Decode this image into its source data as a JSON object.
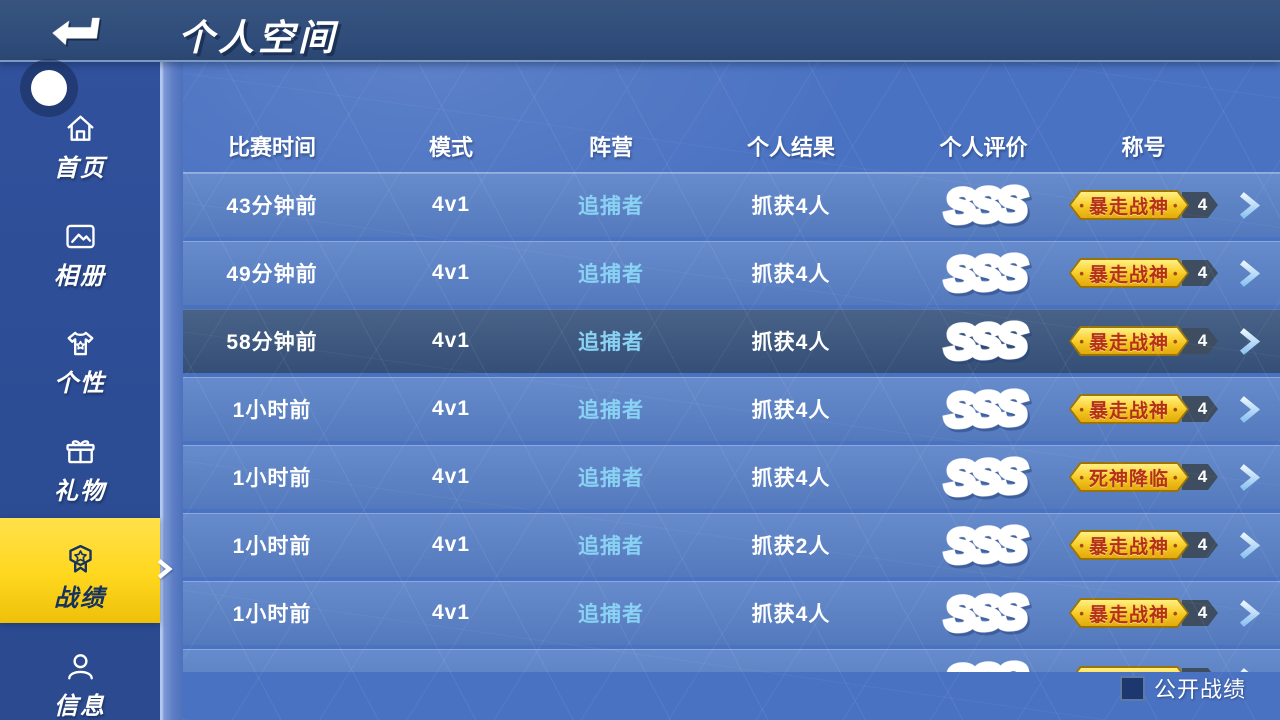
{
  "top_bar": {
    "title": "个人空间"
  },
  "sidebar": {
    "items": [
      {
        "id": "home",
        "label": "首页",
        "icon": "home",
        "active": false
      },
      {
        "id": "album",
        "label": "相册",
        "icon": "album",
        "active": false
      },
      {
        "id": "style",
        "label": "个性",
        "icon": "tshirt",
        "active": false
      },
      {
        "id": "gift",
        "label": "礼物",
        "icon": "gift",
        "active": false
      },
      {
        "id": "record",
        "label": "战绩",
        "icon": "medal",
        "active": true
      },
      {
        "id": "info",
        "label": "信息",
        "icon": "person",
        "active": false
      }
    ]
  },
  "records": {
    "columns": [
      "比赛时间",
      "模式",
      "阵营",
      "个人结果",
      "个人评价",
      "称号"
    ],
    "badge_dot": "•",
    "rows": [
      {
        "time": "43分钟前",
        "mode": "4v1",
        "faction": "追捕者",
        "result": "抓获4人",
        "rating": "SSS",
        "title": "暴走战神",
        "count": "4",
        "selected": false,
        "partial": false
      },
      {
        "time": "49分钟前",
        "mode": "4v1",
        "faction": "追捕者",
        "result": "抓获4人",
        "rating": "SSS",
        "title": "暴走战神",
        "count": "4",
        "selected": false,
        "partial": false
      },
      {
        "time": "58分钟前",
        "mode": "4v1",
        "faction": "追捕者",
        "result": "抓获4人",
        "rating": "SSS",
        "title": "暴走战神",
        "count": "4",
        "selected": true,
        "partial": false
      },
      {
        "time": "1小时前",
        "mode": "4v1",
        "faction": "追捕者",
        "result": "抓获4人",
        "rating": "SSS",
        "title": "暴走战神",
        "count": "4",
        "selected": false,
        "partial": false
      },
      {
        "time": "1小时前",
        "mode": "4v1",
        "faction": "追捕者",
        "result": "抓获4人",
        "rating": "SSS",
        "title": "死神降临",
        "count": "4",
        "selected": false,
        "partial": false
      },
      {
        "time": "1小时前",
        "mode": "4v1",
        "faction": "追捕者",
        "result": "抓获2人",
        "rating": "SSS",
        "title": "暴走战神",
        "count": "4",
        "selected": false,
        "partial": false
      },
      {
        "time": "1小时前",
        "mode": "4v1",
        "faction": "追捕者",
        "result": "抓获4人",
        "rating": "SSS",
        "title": "暴走战神",
        "count": "4",
        "selected": false,
        "partial": false
      },
      {
        "time": "",
        "mode": "",
        "faction": "",
        "result": "",
        "rating": "SSS",
        "title": "",
        "count": "",
        "selected": false,
        "partial": true
      }
    ],
    "footer": {
      "checkbox_label": "公开战绩",
      "checked": false
    }
  },
  "colors": {
    "accent_yellow": "#ffd71e",
    "faction_blue": "#8ad2f4",
    "badge_gold": "#f2c41d",
    "badge_text_red": "#b43019",
    "tag_dark": "#3e4e60",
    "row_selected": "#3a567f",
    "content_bg": "#4a72c2",
    "row_bg": "#5a82c8",
    "label_dark": "#16325e",
    "topbar_bg": "#2f4c7a"
  }
}
